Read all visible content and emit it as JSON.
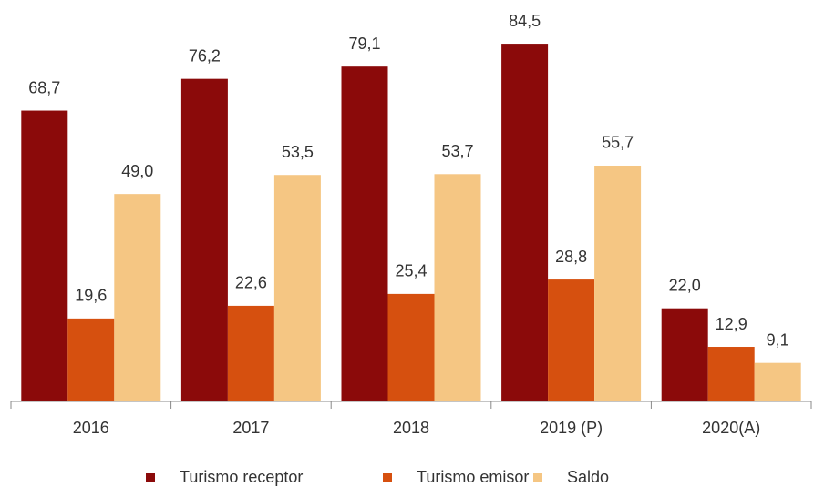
{
  "chart_data": {
    "type": "bar",
    "categories": [
      "2016",
      "2017",
      "2018",
      "2019 (P)",
      "2020(A)"
    ],
    "series": [
      {
        "name": "Turismo receptor",
        "color": "#8b0a0a",
        "values": [
          68.7,
          76.2,
          79.1,
          84.5,
          22.0
        ],
        "value_labels": [
          "68,7",
          "76,2",
          "79,1",
          "84,5",
          "22,0"
        ]
      },
      {
        "name": "Turismo emisor",
        "color": "#d6500f",
        "values": [
          19.6,
          22.6,
          25.4,
          28.8,
          12.9
        ],
        "value_labels": [
          "19,6",
          "22,6",
          "25,4",
          "28,8",
          "12,9"
        ]
      },
      {
        "name": "Saldo",
        "color": "#f5c683",
        "values": [
          49.0,
          53.5,
          53.7,
          55.7,
          9.1
        ],
        "value_labels": [
          "49,0",
          "53,5",
          "53,7",
          "55,7",
          "9,1"
        ]
      }
    ],
    "ylim": [
      0,
      90
    ],
    "legend": "bottom"
  }
}
